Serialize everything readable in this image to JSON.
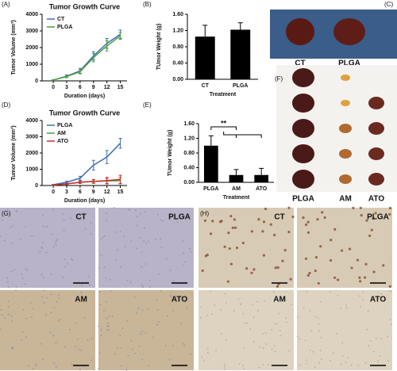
{
  "chart_data": [
    {
      "type": "line",
      "panel_label": "(A)",
      "title": "Tumor Growth Curve",
      "xlabel": "Duration (days)",
      "ylabel": "Tumor Volume (mm³)",
      "x": [
        0,
        3,
        6,
        9,
        12,
        15
      ],
      "xlim": [
        -2.5,
        16.5
      ],
      "xticks": [
        0,
        3,
        6,
        9,
        12,
        15
      ],
      "ylim": [
        0,
        4000
      ],
      "yticks": [
        0,
        1000,
        2000,
        3000,
        4000
      ],
      "series": [
        {
          "name": "CT",
          "color": "#3d6db5",
          "values": [
            50,
            280,
            600,
            1500,
            2250,
            2800
          ],
          "errors": [
            20,
            80,
            150,
            250,
            300,
            250
          ]
        },
        {
          "name": "PLGA",
          "color": "#4a9e3f",
          "values": [
            50,
            260,
            550,
            1400,
            2100,
            2700
          ],
          "errors": [
            20,
            70,
            130,
            250,
            300,
            200
          ]
        }
      ]
    },
    {
      "type": "bar",
      "panel_label": "(B)",
      "xlabel": "Treatment",
      "ylabel": "TUmor Weight (g)",
      "categories": [
        "CT",
        "PLGA"
      ],
      "values": [
        1.05,
        1.22
      ],
      "errors": [
        0.28,
        0.17
      ],
      "color": "#000000",
      "ylim": [
        0,
        1.6
      ],
      "yticks": [
        {
          "value": 0,
          "label": "0.00"
        },
        {
          "value": 0.4,
          "label": "0.40"
        },
        {
          "value": 0.8,
          "label": "0.80"
        },
        {
          "value": 1.2,
          "label": "1.20"
        },
        {
          "value": 1.6,
          "label": "1.60"
        }
      ]
    },
    {
      "type": "line",
      "panel_label": "(D)",
      "title": "Tumor Growth Curve",
      "xlabel": "Duration (days)",
      "ylabel": "Tumor Volume (mm³)",
      "x": [
        0,
        3,
        6,
        9,
        12,
        15
      ],
      "xlim": [
        -2.5,
        16.5
      ],
      "xticks": [
        0,
        3,
        6,
        9,
        12,
        15
      ],
      "ylim": [
        0,
        4000
      ],
      "yticks": [
        0,
        1000,
        2000,
        3000,
        4000
      ],
      "series": [
        {
          "name": "PLGA",
          "color": "#3d6db5",
          "values": [
            50,
            200,
            450,
            1250,
            1750,
            2600
          ],
          "errors": [
            20,
            60,
            120,
            300,
            400,
            300
          ]
        },
        {
          "name": "AM",
          "color": "#4a9e3f",
          "values": [
            30,
            100,
            200,
            250,
            280,
            300
          ],
          "errors": [
            10,
            40,
            80,
            100,
            150,
            200
          ]
        },
        {
          "name": "ATO",
          "color": "#d02a2a",
          "values": [
            30,
            100,
            200,
            250,
            300,
            380
          ],
          "errors": [
            10,
            40,
            80,
            120,
            200,
            250
          ]
        }
      ]
    },
    {
      "type": "bar",
      "panel_label": "(E)",
      "xlabel": "Treatment",
      "ylabel": "TUmor Weight (g)",
      "annotation": "**",
      "categories": [
        "PLGA",
        "AM",
        "ATO"
      ],
      "values": [
        1.0,
        0.2,
        0.2
      ],
      "errors": [
        0.27,
        0.15,
        0.18
      ],
      "color": "#000000",
      "ylim": [
        0,
        1.6
      ],
      "yticks": [
        {
          "value": 0,
          "label": "0.00"
        },
        {
          "value": 0.4,
          "label": "0.40"
        },
        {
          "value": 0.8,
          "label": "0.80"
        },
        {
          "value": 1.2,
          "label": "1.20"
        },
        {
          "value": 1.6,
          "label": "1.60"
        }
      ]
    }
  ],
  "panels": {
    "C": {
      "label": "(C)",
      "groups": [
        "CT",
        "PLGA"
      ]
    },
    "F": {
      "label": "(F)",
      "groups": [
        "PLGA",
        "AM",
        "ATO"
      ]
    },
    "G": {
      "label": "(G)",
      "groups": [
        "CT",
        "PLGA",
        "AM",
        "ATO"
      ]
    },
    "H": {
      "label": "(H)",
      "groups": [
        "CT",
        "PLGA",
        "AM",
        "ATO"
      ]
    }
  }
}
